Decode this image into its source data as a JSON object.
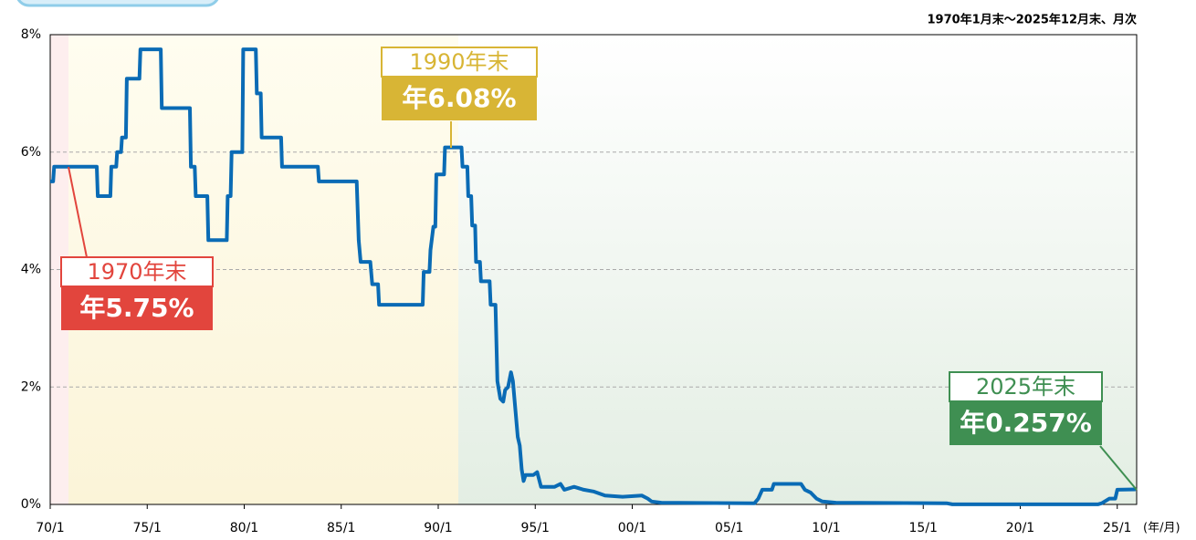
{
  "chart_data": {
    "type": "line",
    "subtitle": "1970年1月末～2025年12月末、月次",
    "x_label": "(年/月)",
    "xlim": [
      1970,
      2026
    ],
    "xticks": [
      {
        "value": 1970,
        "label": "70/1"
      },
      {
        "value": 1975,
        "label": "75/1"
      },
      {
        "value": 1980,
        "label": "80/1"
      },
      {
        "value": 1985,
        "label": "85/1"
      },
      {
        "value": 1990,
        "label": "90/1"
      },
      {
        "value": 1995,
        "label": "95/1"
      },
      {
        "value": 2000,
        "label": "00/1"
      },
      {
        "value": 2005,
        "label": "05/1"
      },
      {
        "value": 2010,
        "label": "10/1"
      },
      {
        "value": 2015,
        "label": "15/1"
      },
      {
        "value": 2020,
        "label": "20/1"
      },
      {
        "value": 2025,
        "label": "25/1"
      }
    ],
    "ylim": [
      0,
      8
    ],
    "yticks": [
      {
        "value": 0,
        "label": "0%"
      },
      {
        "value": 2,
        "label": "2%"
      },
      {
        "value": 4,
        "label": "4%"
      },
      {
        "value": 6,
        "label": "6%"
      },
      {
        "value": 8,
        "label": "8%"
      }
    ],
    "grid": true,
    "series": [
      {
        "color": "#0a6bb5",
        "x": [
          1970.0,
          1970.15,
          1970.2,
          1972.4,
          1972.45,
          1973.1,
          1973.15,
          1973.4,
          1973.45,
          1973.65,
          1973.7,
          1973.9,
          1973.95,
          1974.6,
          1974.65,
          1975.7,
          1975.75,
          1977.2,
          1977.25,
          1977.45,
          1977.5,
          1978.1,
          1978.15,
          1979.1,
          1979.15,
          1979.3,
          1979.35,
          1979.9,
          1979.95,
          1980.6,
          1980.65,
          1980.85,
          1980.9,
          1981.9,
          1981.95,
          1983.8,
          1983.85,
          1985.8,
          1985.9,
          1986.0,
          1986.5,
          1986.6,
          1986.9,
          1986.95,
          1989.2,
          1989.25,
          1989.55,
          1989.6,
          1989.75,
          1989.85,
          1989.9,
          1990.3,
          1990.35,
          1991.2,
          1991.25,
          1991.5,
          1991.55,
          1991.7,
          1991.75,
          1991.9,
          1991.95,
          1992.15,
          1992.2,
          1992.65,
          1992.7,
          1992.95,
          1993.05,
          1993.2,
          1993.35,
          1993.45,
          1993.6,
          1993.75,
          1993.85,
          1994.1,
          1994.2,
          1994.3,
          1994.4,
          1994.5,
          1994.9,
          1995.1,
          1995.3,
          1996.0,
          1996.3,
          1996.5,
          1997.0,
          1997.5,
          1998.0,
          1998.6,
          1999.5,
          2000.5,
          2000.8,
          2001.0,
          2001.5,
          2006.3,
          2006.5,
          2006.7,
          2007.2,
          2007.3,
          2008.7,
          2008.9,
          2009.2,
          2009.5,
          2009.8,
          2010.5,
          2016.2,
          2016.5,
          2024.0,
          2024.2,
          2024.6,
          2024.9,
          2025.0,
          2025.95
        ],
        "values": [
          5.5,
          5.5,
          5.75,
          5.75,
          5.25,
          5.25,
          5.75,
          5.75,
          6.0,
          6.0,
          6.25,
          6.25,
          7.25,
          7.25,
          7.75,
          7.75,
          6.75,
          6.75,
          5.75,
          5.75,
          5.25,
          5.25,
          4.5,
          4.5,
          5.25,
          5.25,
          6.0,
          6.0,
          7.75,
          7.75,
          7.0,
          7.0,
          6.25,
          6.25,
          5.75,
          5.75,
          5.5,
          5.5,
          4.5,
          4.13,
          4.13,
          3.75,
          3.75,
          3.4,
          3.4,
          3.96,
          3.96,
          4.33,
          4.73,
          4.73,
          5.62,
          5.62,
          6.08,
          6.08,
          5.75,
          5.75,
          5.25,
          5.25,
          4.75,
          4.75,
          4.13,
          4.13,
          3.8,
          3.8,
          3.4,
          3.4,
          2.1,
          1.8,
          1.75,
          1.95,
          2.0,
          2.25,
          2.1,
          1.15,
          1.0,
          0.6,
          0.4,
          0.5,
          0.5,
          0.55,
          0.3,
          0.3,
          0.35,
          0.25,
          0.3,
          0.25,
          0.22,
          0.15,
          0.13,
          0.15,
          0.1,
          0.05,
          0.03,
          0.02,
          0.1,
          0.25,
          0.25,
          0.35,
          0.35,
          0.25,
          0.2,
          0.1,
          0.05,
          0.03,
          0.02,
          0.001,
          0.001,
          0.02,
          0.1,
          0.1,
          0.25,
          0.257
        ]
      }
    ],
    "annotations": [
      {
        "title": "1970年末",
        "text": "年5.75%",
        "color": "#e2453d"
      },
      {
        "title": "1990年末",
        "text": "年6.08%",
        "color": "#d8b535"
      },
      {
        "title": "2025年末",
        "text": "年0.257%",
        "color": "#3f8f52"
      }
    ]
  }
}
